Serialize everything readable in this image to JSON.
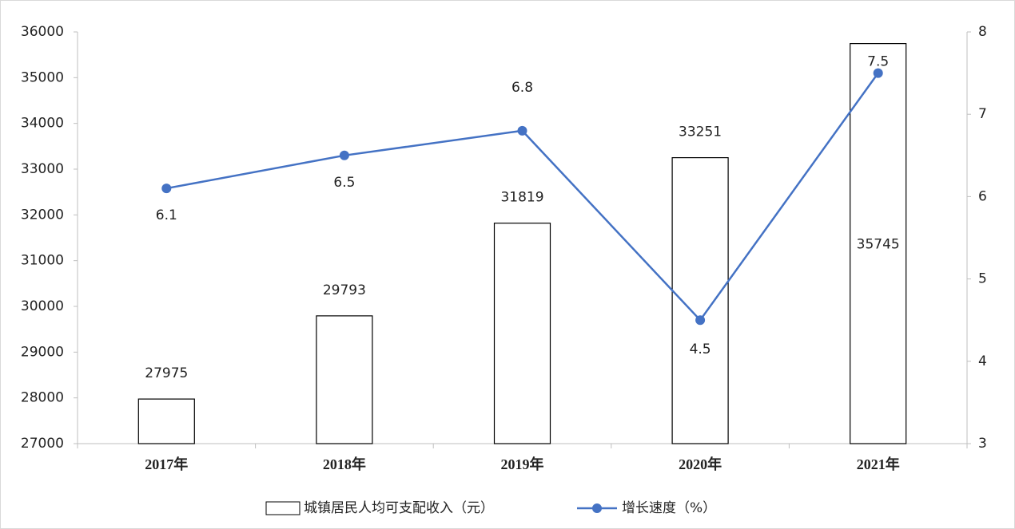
{
  "chart_data": {
    "type": "combo",
    "categories": [
      "2017年",
      "2018年",
      "2019年",
      "2020年",
      "2021年"
    ],
    "series": [
      {
        "name": "城镇居民人均可支配收入（元）",
        "type": "bar",
        "color": "#ffffff",
        "values": [
          27975,
          29793,
          31819,
          33251,
          35745
        ]
      },
      {
        "name": "增长速度（%）",
        "type": "line",
        "color": "#4472c4",
        "axis": "y2",
        "values": [
          6.1,
          6.5,
          6.8,
          4.5,
          7.5
        ]
      }
    ],
    "ylim": [
      27000,
      36000
    ],
    "yticks": [
      27000,
      28000,
      29000,
      30000,
      31000,
      32000,
      33000,
      34000,
      35000,
      36000
    ],
    "y2lim": [
      3,
      8
    ],
    "y2ticks": [
      3,
      4,
      5,
      6,
      7,
      8
    ],
    "grid": false,
    "legend": "bottom"
  }
}
